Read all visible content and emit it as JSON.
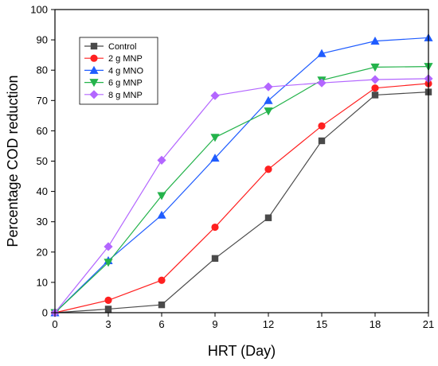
{
  "chart_data": {
    "type": "line",
    "xlabel": "HRT (Day)",
    "ylabel": "Percentage COD reduction",
    "xlim": [
      0,
      21
    ],
    "ylim": [
      0,
      100
    ],
    "x_ticks": [
      0,
      3,
      6,
      9,
      12,
      15,
      18,
      21
    ],
    "y_ticks": [
      0,
      10,
      20,
      30,
      40,
      50,
      60,
      70,
      80,
      90,
      100
    ],
    "x": [
      0,
      3,
      6,
      9,
      12,
      15,
      18,
      21
    ],
    "grid": false,
    "legend_position": "top-left",
    "series": [
      {
        "name": "Control",
        "color": "#4a4a4a",
        "marker": "square",
        "values": [
          0,
          1.2,
          2.6,
          17.9,
          31.3,
          56.7,
          71.8,
          72.8
        ]
      },
      {
        "name": "2 g MNP",
        "color": "#ff2020",
        "marker": "circle",
        "values": [
          0,
          4.1,
          10.7,
          28.2,
          47.3,
          61.6,
          74.1,
          75.6
        ]
      },
      {
        "name": "4 g MNO",
        "color": "#1f5cff",
        "marker": "triangle-up",
        "values": [
          0,
          17.2,
          32.2,
          51.0,
          70.0,
          85.5,
          89.6,
          90.7
        ]
      },
      {
        "name": "6 g MNP",
        "color": "#24b34b",
        "marker": "triangle-down",
        "values": [
          0,
          16.6,
          38.6,
          57.8,
          66.5,
          76.7,
          81.0,
          81.2
        ]
      },
      {
        "name": "8 g MNP",
        "color": "#b366ff",
        "marker": "diamond",
        "values": [
          0,
          21.8,
          50.3,
          71.6,
          74.5,
          75.8,
          76.9,
          77.2
        ]
      }
    ]
  }
}
